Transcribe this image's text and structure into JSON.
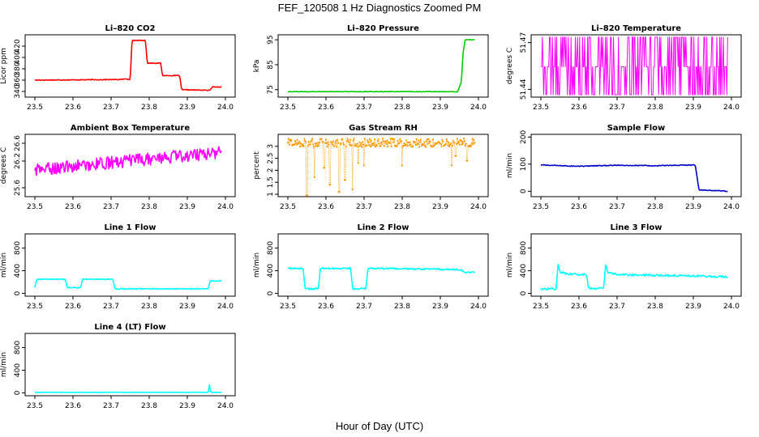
{
  "figure": {
    "title": "FEF_120508  1 Hz Diagnostics Zoomed PM",
    "xlabel": "Hour of Day (UTC)"
  },
  "chart_data": [
    {
      "type": "line",
      "title": "Li–820 CO2",
      "ylabel": "Licor ppm",
      "xlim": [
        23.5,
        24.0
      ],
      "ylim": [
        330,
        440
      ],
      "yticks": [
        340,
        360,
        380,
        400,
        420
      ],
      "xticks": [
        "23.5",
        "23.6",
        "23.7",
        "23.8",
        "23.9",
        "24.0"
      ],
      "color": "#ff0000",
      "series": [
        {
          "x": [
            23.5,
            23.72,
            23.74,
            23.75,
            23.755,
            23.79,
            23.795,
            23.83,
            23.835,
            23.88,
            23.885,
            23.96,
            23.965,
            23.99
          ],
          "y": [
            360,
            361,
            362,
            361,
            430,
            430,
            390,
            390,
            368,
            368,
            343,
            342,
            348,
            348
          ]
        }
      ],
      "noise": 0.6
    },
    {
      "type": "line",
      "title": "Li–820 Pressure",
      "ylabel": "kPa",
      "xlim": [
        23.5,
        24.0
      ],
      "ylim": [
        72,
        97
      ],
      "yticks": [
        75,
        85,
        95
      ],
      "xticks": [
        "23.5",
        "23.6",
        "23.7",
        "23.8",
        "23.9",
        "24.0"
      ],
      "color": "#00cc00",
      "series": [
        {
          "x": [
            23.5,
            23.93,
            23.945,
            23.955,
            23.96,
            23.965,
            23.99
          ],
          "y": [
            74.2,
            74.2,
            74.0,
            78,
            90,
            95,
            95
          ]
        }
      ],
      "noise": 0.1
    },
    {
      "type": "line",
      "title": "Li–820 Temperature",
      "ylabel": "degrees C",
      "xlim": [
        23.5,
        24.0
      ],
      "ylim": [
        51.435,
        51.475
      ],
      "yticks": [
        51.44,
        51.47
      ],
      "xticks": [
        "23.5",
        "23.6",
        "23.7",
        "23.8",
        "23.9",
        "24.0"
      ],
      "color": "#ff00ff",
      "levels": [
        51.4365,
        51.4545,
        51.4735
      ],
      "series": [
        {
          "x": [
            23.5,
            23.99
          ],
          "y": [
            51.4545,
            51.4545
          ]
        }
      ],
      "noise": 0
    },
    {
      "type": "line",
      "title": "Ambient Box Temperature",
      "ylabel": "degrees C",
      "xlim": [
        23.5,
        24.0
      ],
      "ylim": [
        25.4,
        26.8
      ],
      "yticks": [
        25.6,
        26.2,
        26.6
      ],
      "xticks": [
        "23.5",
        "23.6",
        "23.7",
        "23.8",
        "23.9",
        "24.0"
      ],
      "color": "#ff00ff",
      "series": [
        {
          "x": [
            23.5,
            23.99
          ],
          "y": [
            26.0,
            26.4
          ]
        }
      ],
      "noise": 0.14
    },
    {
      "type": "scatter",
      "title": "Gas Stream RH",
      "ylabel": "percent",
      "xlim": [
        23.5,
        24.0
      ],
      "ylim": [
        0.9,
        3.5
      ],
      "yticks": [
        1.0,
        1.5,
        2.0,
        2.5,
        3.0
      ],
      "xticks": [
        "23.5",
        "23.6",
        "23.7",
        "23.8",
        "23.9",
        "24.0"
      ],
      "color": "#ff9900",
      "series": [
        {
          "x": [
            23.5,
            23.99
          ],
          "y": [
            3.15,
            3.15
          ]
        }
      ],
      "noise": 0.18,
      "spikes": [
        [
          23.55,
          0.95
        ],
        [
          23.57,
          1.7
        ],
        [
          23.595,
          2.1
        ],
        [
          23.61,
          1.4
        ],
        [
          23.635,
          1.1
        ],
        [
          23.65,
          1.6
        ],
        [
          23.67,
          1.2
        ],
        [
          23.685,
          2.3
        ],
        [
          23.7,
          2.2
        ],
        [
          23.8,
          2.2
        ],
        [
          23.93,
          2.2
        ],
        [
          23.94,
          2.6
        ],
        [
          23.97,
          2.4
        ]
      ]
    },
    {
      "type": "line",
      "title": "Sample Flow",
      "ylabel": "ml/min",
      "xlim": [
        23.5,
        24.0
      ],
      "ylim": [
        -20,
        210
      ],
      "yticks": [
        0,
        100,
        200
      ],
      "xticks": [
        "23.5",
        "23.6",
        "23.7",
        "23.8",
        "23.9",
        "24.0"
      ],
      "color": "#0000cc",
      "series": [
        {
          "x": [
            23.5,
            23.6,
            23.7,
            23.8,
            23.905,
            23.915,
            23.99
          ],
          "y": [
            97,
            92,
            96,
            94,
            97,
            5,
            0
          ]
        }
      ],
      "noise": 1.5
    },
    {
      "type": "line",
      "title": "Line 1 Flow",
      "ylabel": "ml/min",
      "xlim": [
        23.5,
        24.0
      ],
      "ylim": [
        -50,
        1050
      ],
      "yticks": [
        0,
        400,
        800
      ],
      "xticks": [
        "23.5",
        "23.6",
        "23.7",
        "23.8",
        "23.9",
        "24.0"
      ],
      "color": "#00ffff",
      "series": [
        {
          "x": [
            23.5,
            23.505,
            23.58,
            23.585,
            23.62,
            23.625,
            23.705,
            23.71,
            23.955,
            23.96,
            23.99
          ],
          "y": [
            100,
            250,
            250,
            100,
            100,
            250,
            250,
            80,
            80,
            220,
            220
          ]
        }
      ],
      "noise": 8
    },
    {
      "type": "line",
      "title": "Line 2 Flow",
      "ylabel": "ml/min",
      "xlim": [
        23.5,
        24.0
      ],
      "ylim": [
        -50,
        1050
      ],
      "yticks": [
        0,
        400,
        800
      ],
      "xticks": [
        "23.5",
        "23.6",
        "23.7",
        "23.8",
        "23.9",
        "24.0"
      ],
      "color": "#00ffff",
      "series": [
        {
          "x": [
            23.5,
            23.54,
            23.545,
            23.58,
            23.585,
            23.665,
            23.67,
            23.705,
            23.71,
            23.955,
            23.96,
            23.99
          ],
          "y": [
            440,
            440,
            80,
            80,
            440,
            440,
            80,
            80,
            440,
            420,
            380,
            370
          ]
        }
      ],
      "noise": 14
    },
    {
      "type": "line",
      "title": "Line 3 Flow",
      "ylabel": "ml/min",
      "xlim": [
        23.5,
        24.0
      ],
      "ylim": [
        -50,
        1050
      ],
      "yticks": [
        0,
        400,
        800
      ],
      "xticks": [
        "23.5",
        "23.6",
        "23.7",
        "23.8",
        "23.9",
        "24.0"
      ],
      "color": "#00ffff",
      "series": [
        {
          "x": [
            23.5,
            23.54,
            23.545,
            23.55,
            23.57,
            23.62,
            23.625,
            23.665,
            23.67,
            23.675,
            23.7,
            23.9,
            23.99
          ],
          "y": [
            80,
            80,
            520,
            380,
            340,
            330,
            90,
            90,
            520,
            380,
            330,
            310,
            290
          ]
        }
      ],
      "noise": 18
    },
    {
      "type": "line",
      "title": "Line 4 (LT) Flow",
      "ylabel": "ml/min",
      "xlim": [
        23.5,
        24.0
      ],
      "ylim": [
        -50,
        1050
      ],
      "yticks": [
        0,
        400,
        800
      ],
      "xticks": [
        "23.5",
        "23.6",
        "23.7",
        "23.8",
        "23.9",
        "24.0"
      ],
      "color": "#00ffff",
      "series": [
        {
          "x": [
            23.5,
            23.955,
            23.958,
            23.962,
            23.99
          ],
          "y": [
            10,
            10,
            140,
            10,
            10
          ]
        }
      ],
      "noise": 2
    }
  ]
}
